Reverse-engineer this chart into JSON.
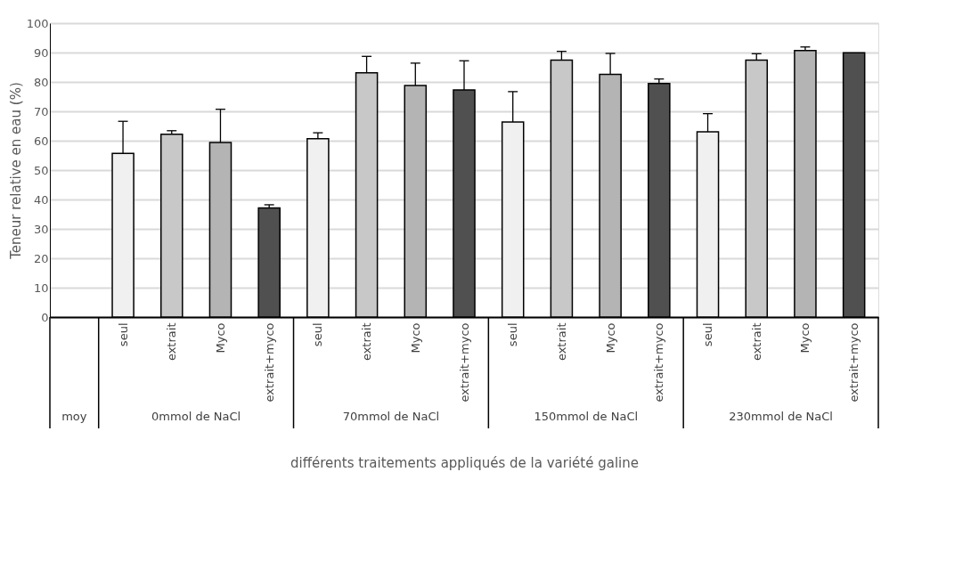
{
  "chart_data": {
    "type": "bar",
    "xlabel": "différents traitements appliqués de la variété galine",
    "ylabel": "Teneur relative en eau (%)",
    "categories": [
      null,
      "seul",
      "extrait",
      "Myco",
      "extrait+myco",
      "seul",
      "extrait",
      "Myco",
      "extrait+myco",
      "seul",
      "extrait",
      "Myco",
      "extrait+myco",
      "seul",
      "extrait",
      "Myco",
      "extrait+myco"
    ],
    "values": [
      null,
      55.7,
      62.2,
      59.4,
      37.1,
      60.7,
      83.1,
      78.8,
      77.3,
      66.4,
      87.4,
      82.6,
      79.5,
      63.0,
      87.4,
      90.7,
      89.9
    ],
    "errors": [
      null,
      [
        55.7,
        66.6
      ],
      [
        62.2,
        63.4
      ],
      [
        59.4,
        70.7
      ],
      [
        37.1,
        38.2
      ],
      [
        60.7,
        62.7
      ],
      [
        83.1,
        88.7
      ],
      [
        78.8,
        86.4
      ],
      [
        77.3,
        87.2
      ],
      [
        66.4,
        76.7
      ],
      [
        87.4,
        90.4
      ],
      [
        82.6,
        89.7
      ],
      [
        79.5,
        81.0
      ],
      [
        63.0,
        69.2
      ],
      [
        87.4,
        89.6
      ],
      [
        90.7,
        91.9
      ],
      null
    ],
    "colors": [
      "#ffffff",
      "#f0f0f0",
      "#c8c8c8",
      "#b4b4b4",
      "#505050",
      "#f0f0f0",
      "#c8c8c8",
      "#b4b4b4",
      "#505050",
      "#f0f0f0",
      "#c8c8c8",
      "#b4b4b4",
      "#505050",
      "#f0f0f0",
      "#c8c8c8",
      "#b4b4b4",
      "#505050"
    ],
    "annotations": [
      "moy",
      "0mmol de NaCl",
      "70mmol de NaCl",
      "150mmol de NaCl",
      "230mmol de NaCl"
    ],
    "ylim": [
      0,
      100
    ],
    "yticks": [
      0,
      10,
      20,
      30,
      40,
      50,
      60,
      70,
      80,
      90,
      100
    ],
    "grid": "y"
  }
}
